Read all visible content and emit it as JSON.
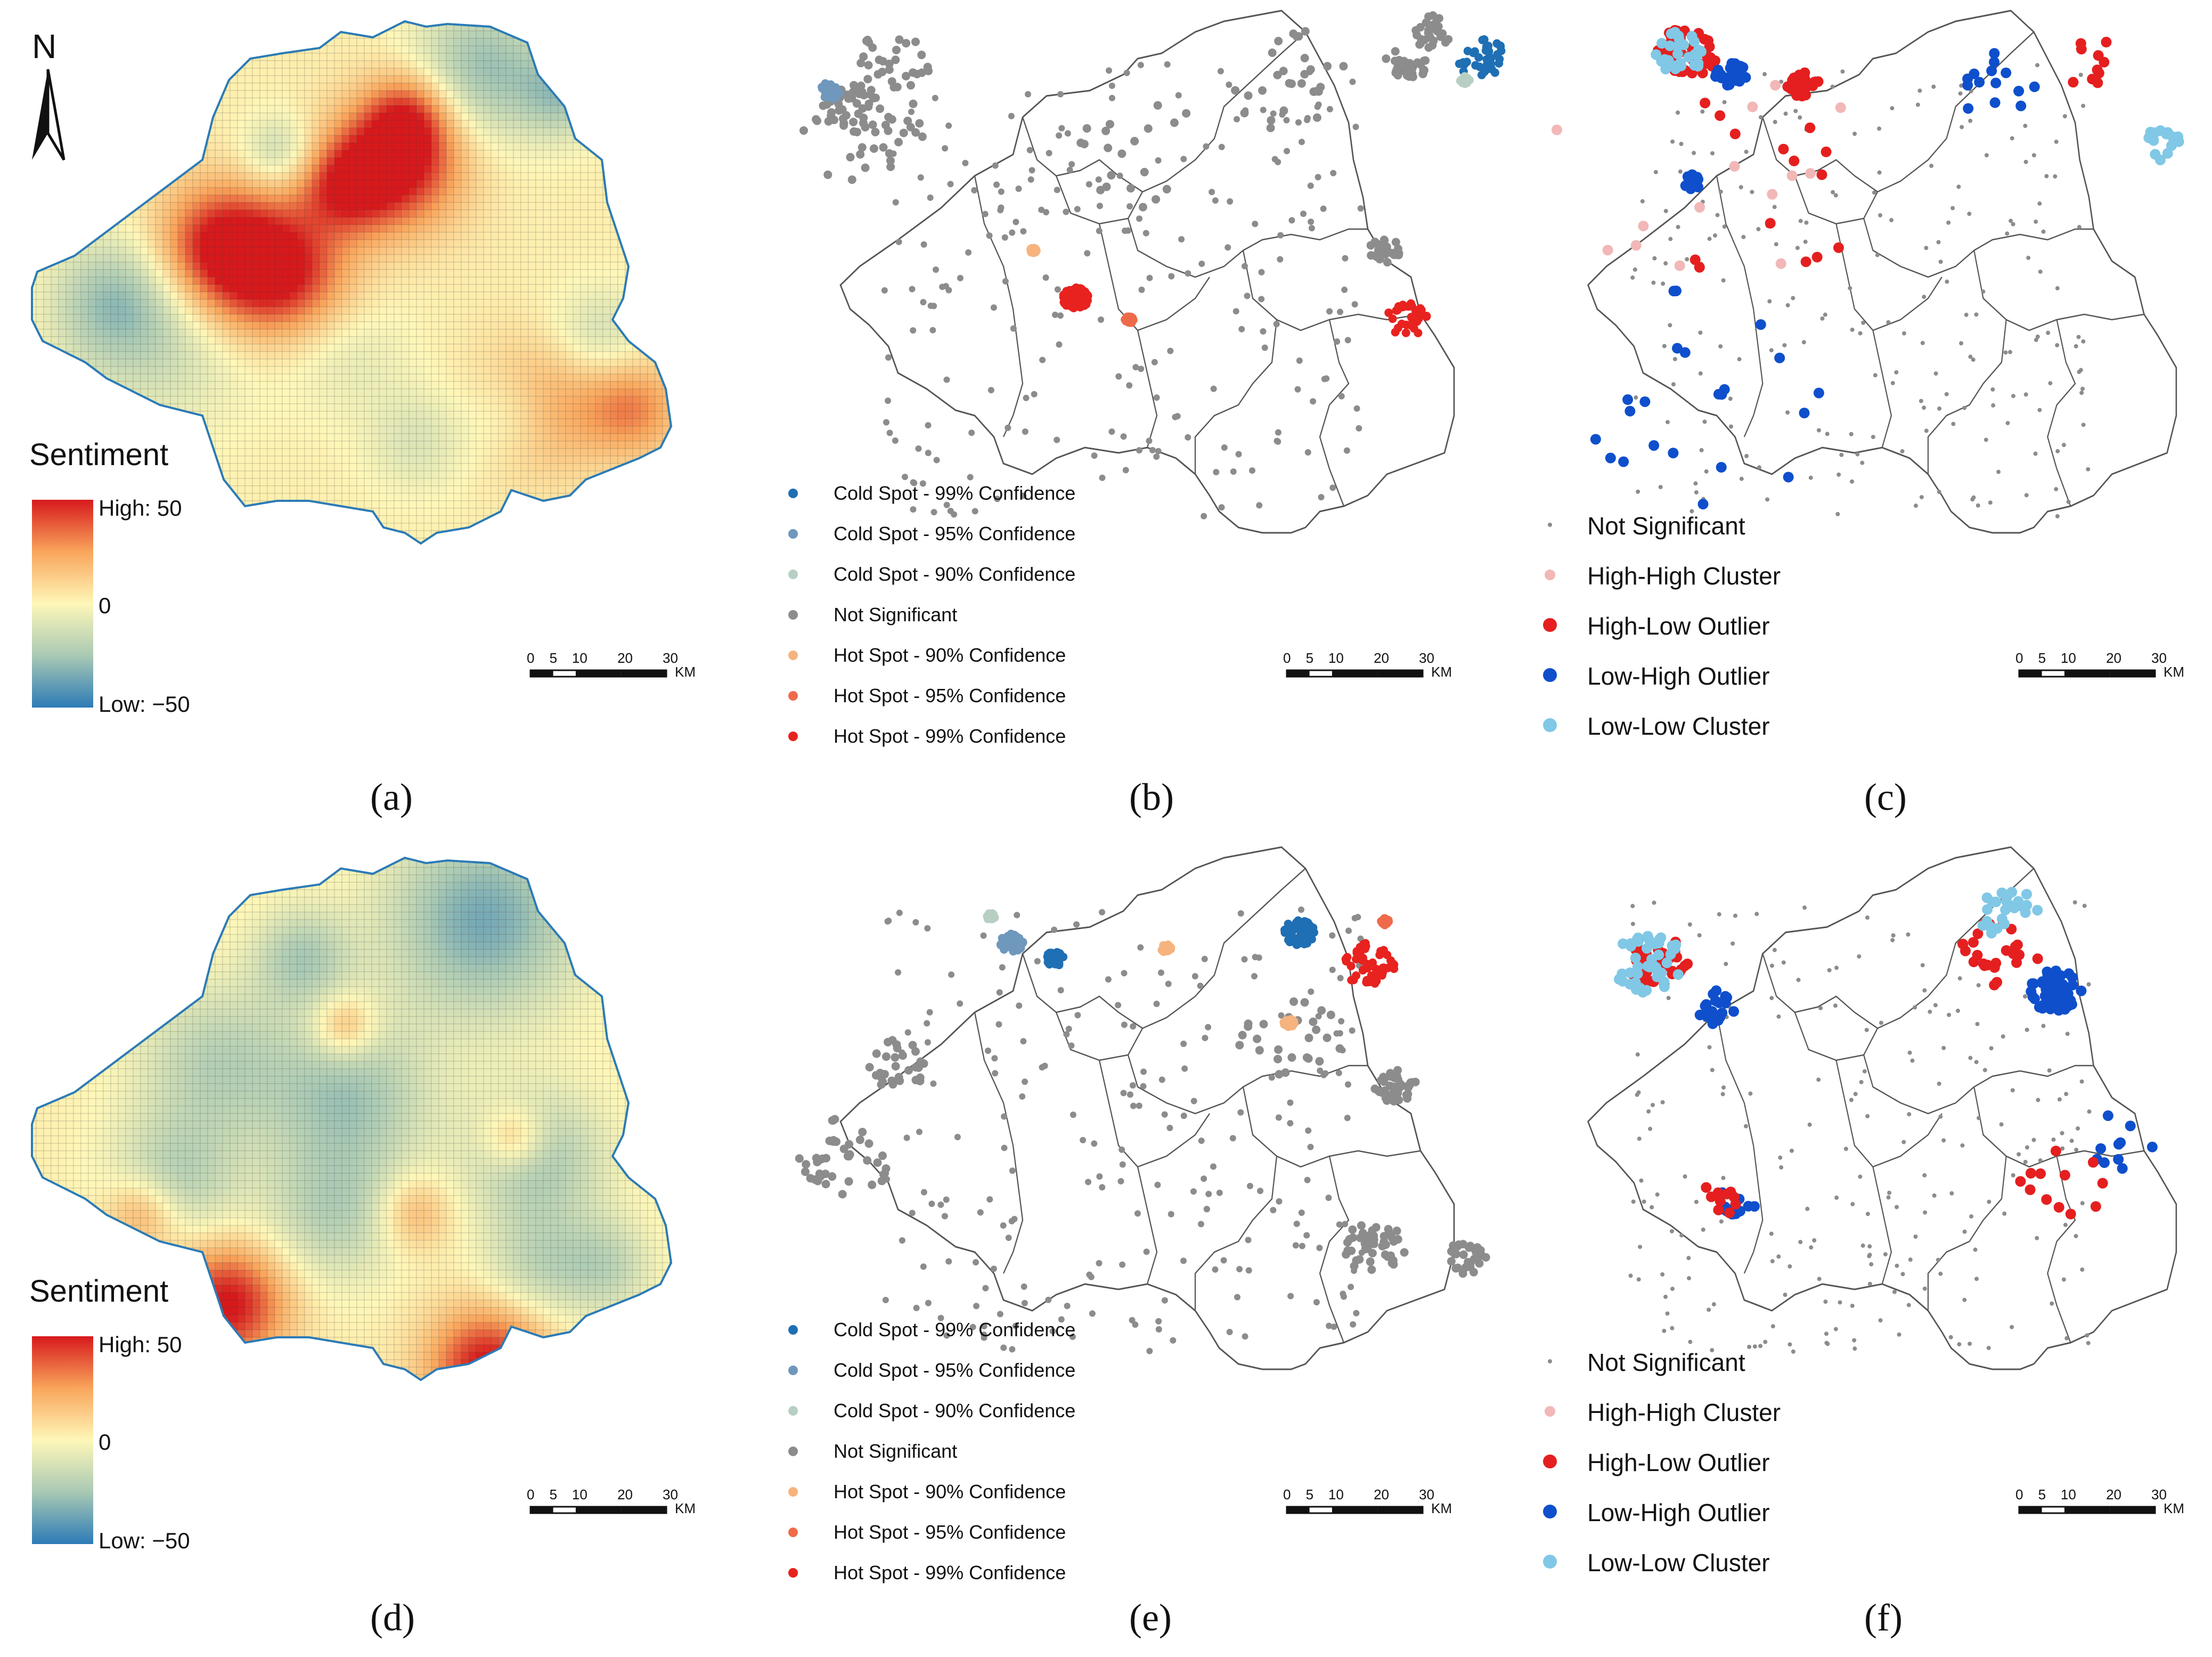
{
  "north_arrow": {
    "label": "N"
  },
  "colorbar": {
    "title": "Sentiment",
    "high_label": "High:",
    "high_value": "50",
    "mid_label": "0",
    "low_label": "Low:",
    "low_value": "−50",
    "colors": [
      "#d7191c",
      "#f9a55b",
      "#fef7b8",
      "#a9c9b4",
      "#2c7bb6"
    ]
  },
  "scale_bar": {
    "ticks": [
      "0",
      "5",
      "10",
      "20",
      "30"
    ],
    "unit": "KM"
  },
  "getis_legend": [
    {
      "label": "Cold Spot - 99% Confidence",
      "color": "#1f6fb4"
    },
    {
      "label": "Cold Spot - 95% Confidence",
      "color": "#6f98bc"
    },
    {
      "label": "Cold Spot - 90% Confidence",
      "color": "#b7cfc2"
    },
    {
      "label": "Not Significant",
      "color": "#8c8c8c"
    },
    {
      "label": "Hot Spot - 90% Confidence",
      "color": "#f6b37e"
    },
    {
      "label": "Hot Spot - 95% Confidence",
      "color": "#ef6a4a"
    },
    {
      "label": "Hot Spot - 99% Confidence",
      "color": "#e8221f"
    }
  ],
  "lisa_legend": [
    {
      "label": "Not Significant",
      "color": "#8c8c8c"
    },
    {
      "label": "High-High Cluster",
      "color": "#f2b7b7"
    },
    {
      "label": "High-Low Outlier",
      "color": "#e51f1f"
    },
    {
      "label": "Low-High Outlier",
      "color": "#0f4fcc"
    },
    {
      "label": "Low-Low Cluster",
      "color": "#80c8e6"
    }
  ],
  "panels": [
    {
      "id": "a",
      "caption": "(a)"
    },
    {
      "id": "b",
      "caption": "(b)"
    },
    {
      "id": "c",
      "caption": "(c)"
    },
    {
      "id": "d",
      "caption": "(d)"
    },
    {
      "id": "e",
      "caption": "(e)"
    },
    {
      "id": "f",
      "caption": "(f)"
    }
  ]
}
